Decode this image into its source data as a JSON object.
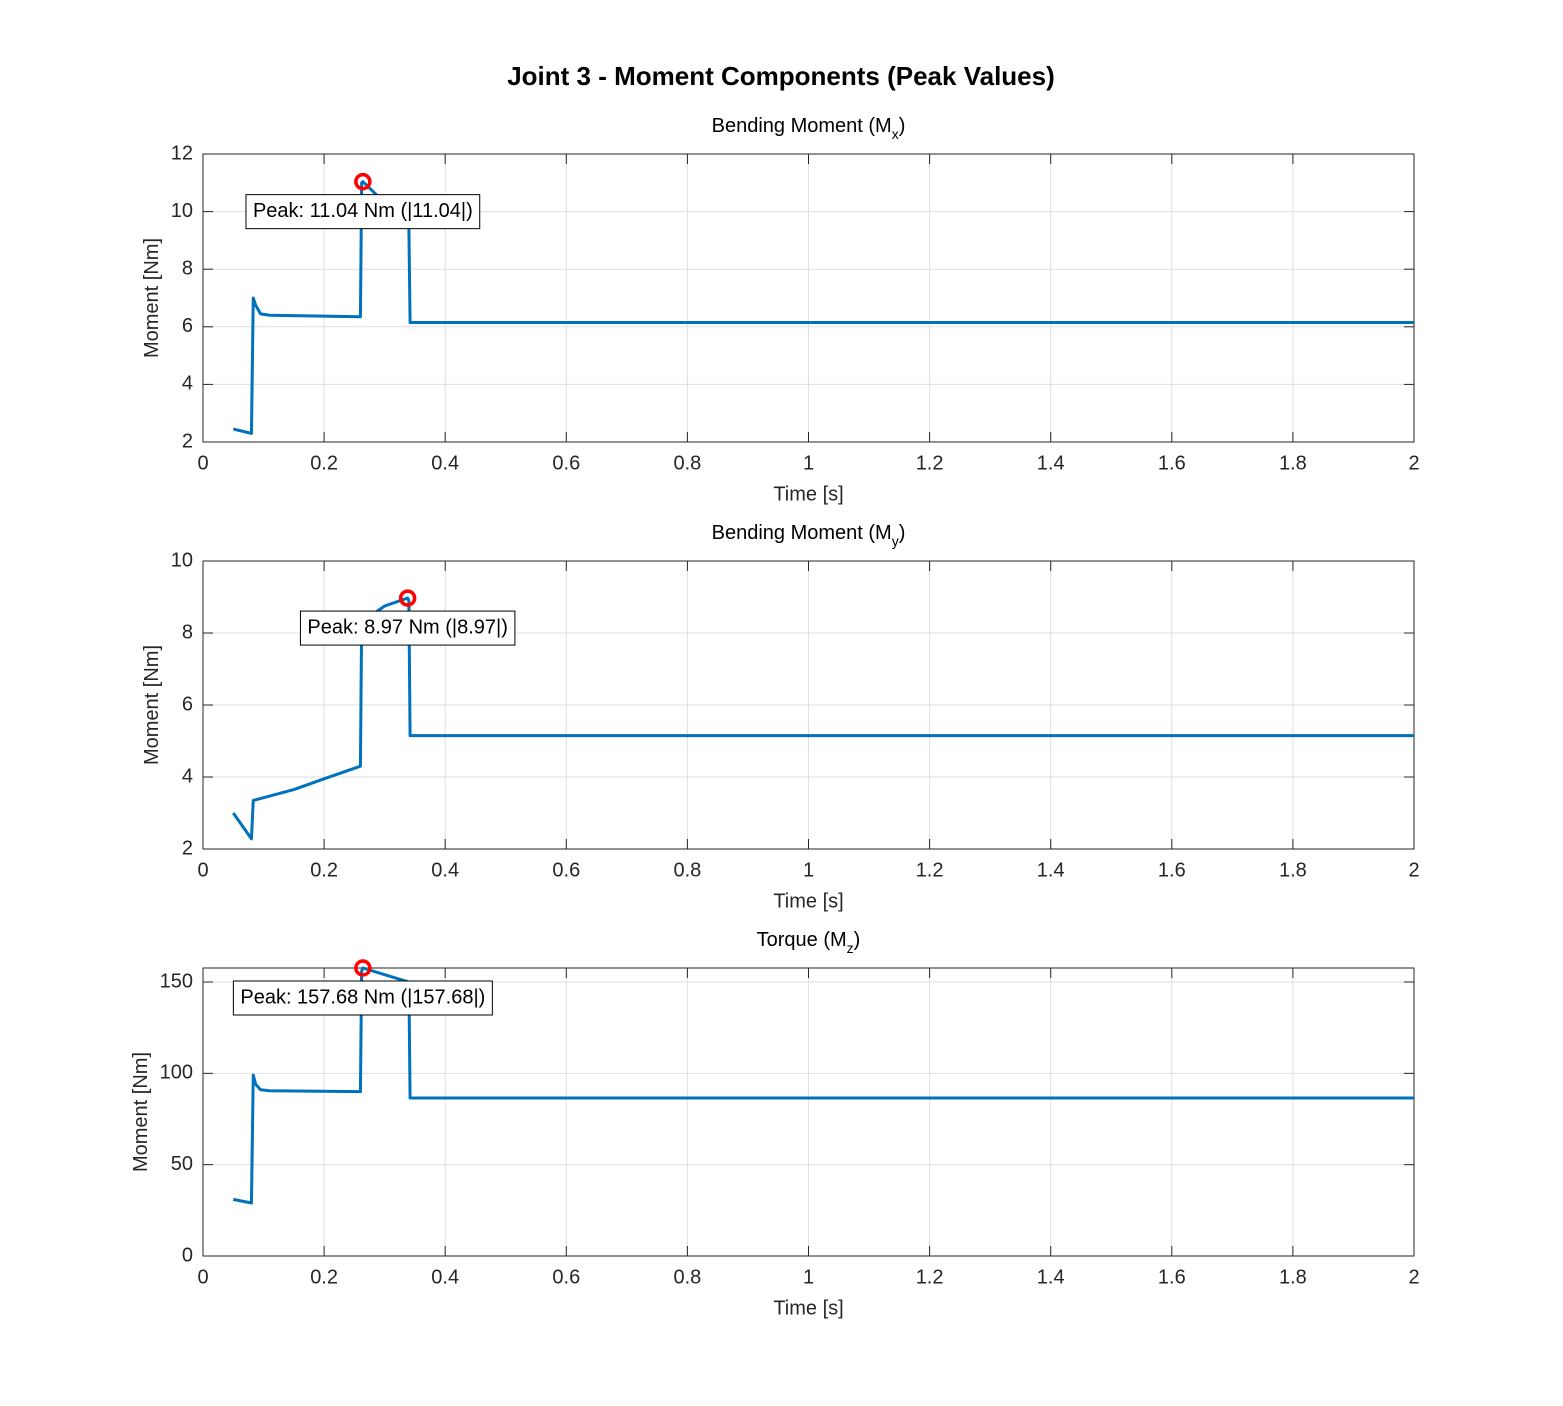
{
  "title": "Joint 3 - Moment Components (Peak Values)",
  "chart_data": [
    {
      "type": "line",
      "title": [
        "Bending Moment (M",
        "x",
        ")"
      ],
      "xlabel": "Time [s]",
      "ylabel": "Moment [Nm]",
      "x": [
        0.05,
        0.08,
        0.083,
        0.087,
        0.095,
        0.11,
        0.26,
        0.262,
        0.264,
        0.34,
        0.342,
        2
      ],
      "y": [
        2.45,
        2.3,
        7.0,
        6.75,
        6.45,
        6.4,
        6.35,
        11.0,
        11.04,
        9.5,
        6.15,
        6.15
      ],
      "color": "#0072bd",
      "xlim": [
        0,
        2
      ],
      "ylim": [
        2,
        12
      ],
      "xticks": [
        0,
        0.2,
        0.4,
        0.6,
        0.8,
        1,
        1.2,
        1.4,
        1.6,
        1.8,
        2
      ],
      "yticks": [
        2,
        4,
        6,
        8,
        10,
        12
      ],
      "grid": true,
      "peak_x": 0.264,
      "peak_y": 11.04,
      "peak_color": "#ff0000",
      "annotation": "Peak: 11.04 Nm (|11.04|)"
    },
    {
      "type": "line",
      "title": [
        "Bending Moment (M",
        "y",
        ")"
      ],
      "xlabel": "Time [s]",
      "ylabel": "Moment [Nm]",
      "x": [
        0.05,
        0.08,
        0.083,
        0.09,
        0.15,
        0.2,
        0.26,
        0.262,
        0.3,
        0.338,
        0.34,
        0.342,
        2
      ],
      "y": [
        3.0,
        2.28,
        3.35,
        3.38,
        3.65,
        3.95,
        4.3,
        8.3,
        8.75,
        8.97,
        8.9,
        5.15,
        5.15
      ],
      "color": "#0072bd",
      "xlim": [
        0,
        2
      ],
      "ylim": [
        2,
        10
      ],
      "xticks": [
        0,
        0.2,
        0.4,
        0.6,
        0.8,
        1,
        1.2,
        1.4,
        1.6,
        1.8,
        2
      ],
      "yticks": [
        2,
        4,
        6,
        8,
        10
      ],
      "grid": true,
      "peak_x": 0.338,
      "peak_y": 8.97,
      "peak_color": "#ff0000",
      "annotation": "Peak: 8.97 Nm (|8.97|)"
    },
    {
      "type": "line",
      "title": [
        "Torque (M",
        "z",
        ")"
      ],
      "xlabel": "Time [s]",
      "ylabel": "Moment [Nm]",
      "x": [
        0.05,
        0.08,
        0.083,
        0.087,
        0.095,
        0.11,
        0.26,
        0.262,
        0.264,
        0.34,
        0.342,
        2
      ],
      "y": [
        31,
        29,
        99,
        94,
        91,
        90.5,
        90,
        156,
        157.68,
        150,
        86.5,
        86.5
      ],
      "color": "#0072bd",
      "xlim": [
        0,
        2
      ],
      "ylim": [
        0,
        157.68
      ],
      "xticks": [
        0,
        0.2,
        0.4,
        0.6,
        0.8,
        1,
        1.2,
        1.4,
        1.6,
        1.8,
        2
      ],
      "yticks": [
        0,
        50,
        100,
        150
      ],
      "grid": true,
      "peak_x": 0.264,
      "peak_y": 157.68,
      "peak_color": "#ff0000",
      "annotation": "Peak: 157.68 Nm (|157.68|)"
    }
  ]
}
